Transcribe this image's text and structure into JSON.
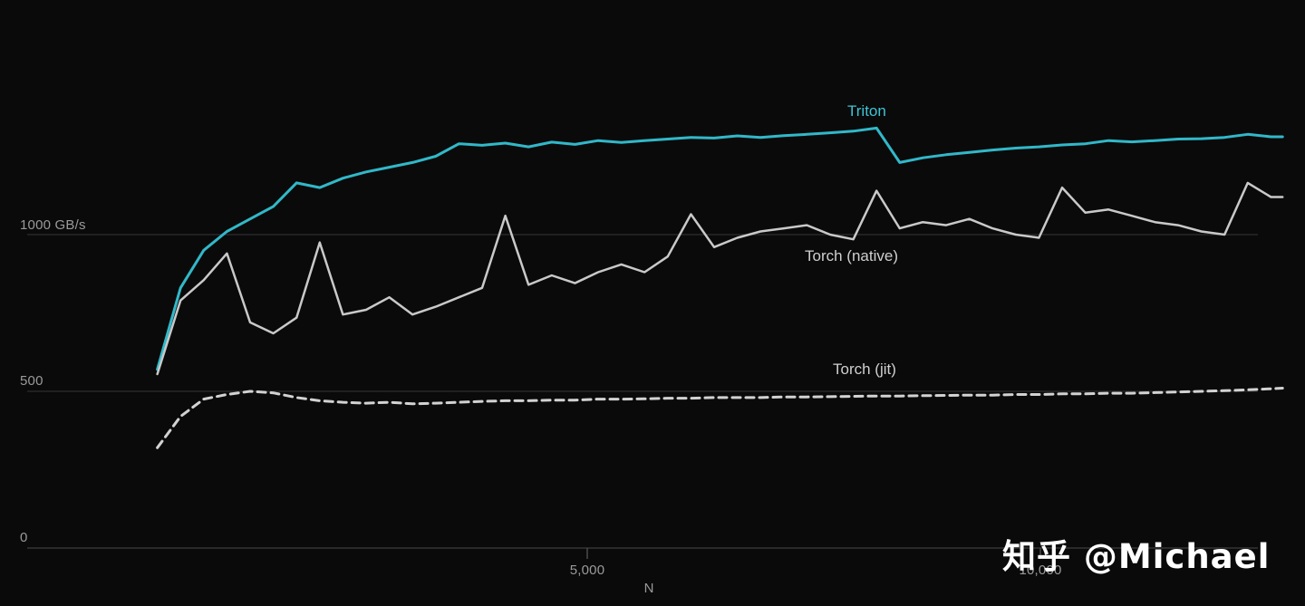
{
  "watermark": {
    "text": "知乎 @Michael"
  },
  "chart_data": {
    "type": "line",
    "title": "",
    "xlabel": "N",
    "ylabel": "GB/s",
    "xlim": [
      256,
      12672
    ],
    "ylim": [
      0,
      1400
    ],
    "grid": "horizontal",
    "legend_position": "inline-annotations",
    "background": "#0a0a0a",
    "grid_color": "#2e2e2e",
    "axis_line_color": "#3d3d3d",
    "tick_label_color": "#9a9a9a",
    "yticks": [
      {
        "value": 0,
        "label": "0"
      },
      {
        "value": 500,
        "label": "500"
      },
      {
        "value": 1000,
        "label": "1000 GB/s"
      }
    ],
    "xticks": [
      {
        "value": 5000,
        "label": "5,000"
      },
      {
        "value": 10000,
        "label": "10,000"
      }
    ],
    "x": [
      256,
      512,
      768,
      1024,
      1280,
      1536,
      1792,
      2048,
      2304,
      2560,
      2816,
      3072,
      3328,
      3584,
      3840,
      4096,
      4352,
      4608,
      4864,
      5120,
      5376,
      5632,
      5888,
      6144,
      6400,
      6656,
      6912,
      7168,
      7424,
      7680,
      7936,
      8192,
      8448,
      8704,
      8960,
      9216,
      9472,
      9728,
      9984,
      10240,
      10496,
      10752,
      11008,
      11264,
      11520,
      11776,
      12032,
      12288,
      12544,
      12672
    ],
    "series": [
      {
        "name": "Triton",
        "color": "#31b8c9",
        "width": 3,
        "dash": false,
        "values": [
          570,
          830,
          950,
          1010,
          1050,
          1090,
          1165,
          1150,
          1180,
          1200,
          1215,
          1230,
          1250,
          1290,
          1285,
          1292,
          1280,
          1295,
          1288,
          1300,
          1294,
          1300,
          1305,
          1310,
          1308,
          1315,
          1310,
          1316,
          1320,
          1325,
          1330,
          1340,
          1230,
          1245,
          1255,
          1262,
          1270,
          1276,
          1280,
          1286,
          1290,
          1300,
          1296,
          1300,
          1305,
          1306,
          1310,
          1320,
          1312,
          1312
        ]
      },
      {
        "name": "Torch (native)",
        "color": "#c9c9c9",
        "width": 2.5,
        "dash": false,
        "values": [
          555,
          790,
          855,
          940,
          720,
          685,
          735,
          975,
          745,
          760,
          800,
          745,
          770,
          800,
          830,
          1060,
          840,
          870,
          845,
          880,
          905,
          880,
          930,
          1065,
          960,
          990,
          1010,
          1020,
          1030,
          1000,
          985,
          1140,
          1020,
          1040,
          1030,
          1050,
          1020,
          1000,
          990,
          1150,
          1070,
          1080,
          1060,
          1040,
          1030,
          1010,
          1000,
          1165,
          1120,
          1120
        ]
      },
      {
        "name": "Torch (jit)",
        "color": "#d2d2d2",
        "width": 3,
        "dash": true,
        "values": [
          320,
          420,
          475,
          490,
          500,
          495,
          480,
          470,
          465,
          462,
          465,
          460,
          462,
          465,
          468,
          470,
          470,
          472,
          472,
          475,
          475,
          476,
          478,
          478,
          480,
          480,
          480,
          482,
          482,
          483,
          484,
          485,
          485,
          486,
          487,
          488,
          488,
          490,
          490,
          492,
          492,
          494,
          494,
          496,
          498,
          500,
          502,
          505,
          508,
          510
        ]
      }
    ]
  }
}
